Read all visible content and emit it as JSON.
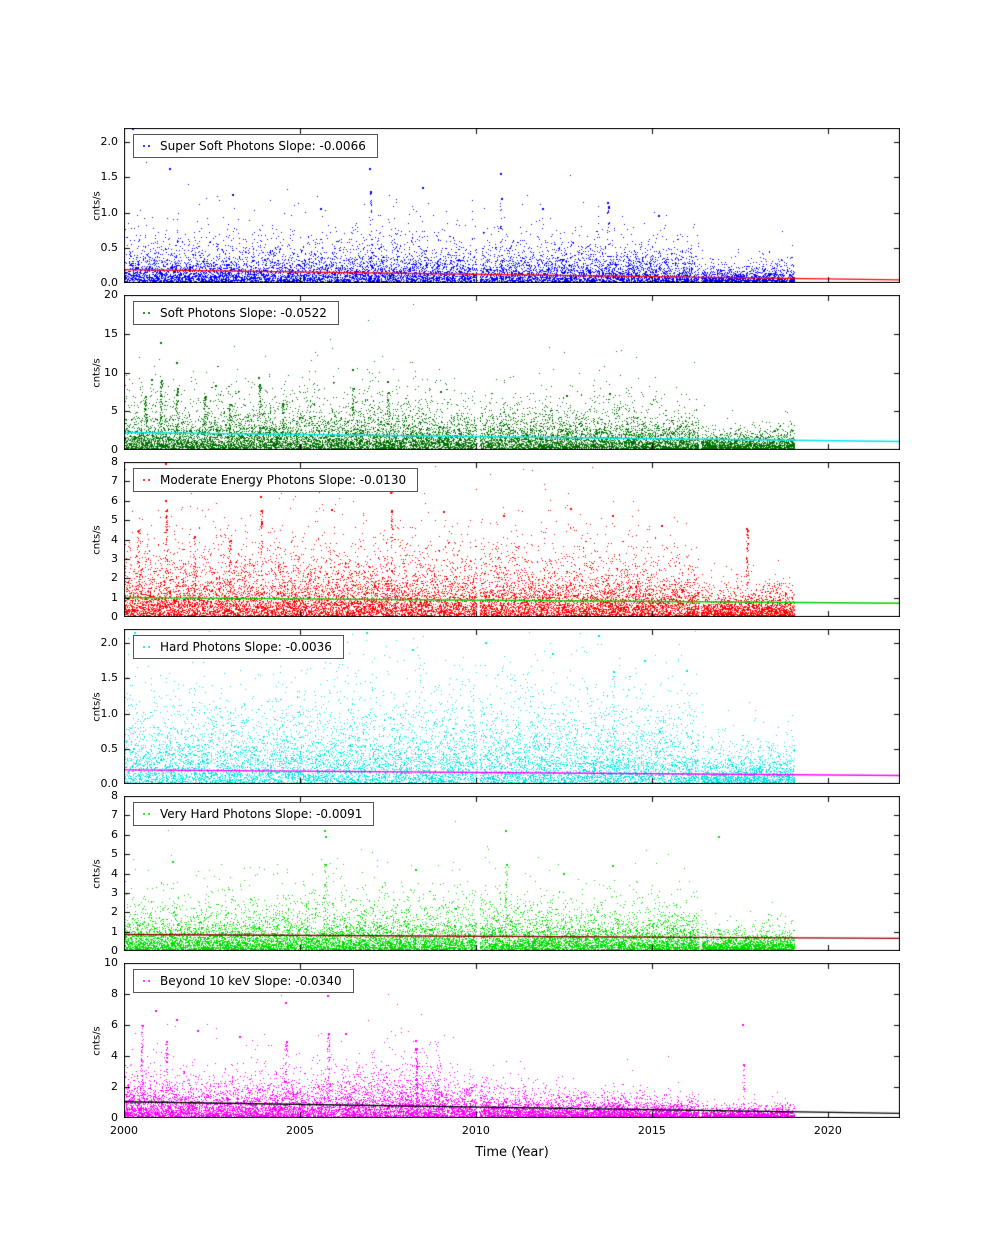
{
  "figure": {
    "background": "#ffffff"
  },
  "chart_data": {
    "type": "scatter",
    "title": "",
    "xlabel": "Time (Year)",
    "ylabel": "cnts/s",
    "xlim": [
      2000,
      2022.05
    ],
    "xticks": [
      2000,
      2005,
      2010,
      2015,
      2020
    ],
    "xtick_labels": [
      "2000",
      "2005",
      "2010",
      "2015",
      "2020"
    ],
    "data_range": [
      2000.0,
      2019.05
    ],
    "gaps": [
      [
        2010.02,
        2010.1
      ],
      [
        2016.33,
        2016.4
      ]
    ],
    "panels": [
      {
        "name": "super-soft-photons",
        "legend": "Super Soft Photons Slope: -0.0066",
        "slope": -0.0066,
        "point_color": "#0000ff",
        "trend": {
          "color": "#ff0000",
          "y_start": 0.19,
          "slope": -0.0066
        },
        "ylim": [
          0,
          2.2
        ],
        "yticks": [
          0,
          0.5,
          1.0,
          1.5,
          2.0
        ],
        "ytick_labels": [
          "0.0",
          "0.5",
          "1.0",
          "1.5",
          "2.0"
        ],
        "envelope": {
          "x": [
            2000,
            2006,
            2008,
            2010,
            2014,
            2016.2,
            2016.45,
            2019.1
          ],
          "y": [
            0.5,
            0.52,
            0.55,
            0.5,
            0.46,
            0.42,
            0.2,
            0.24
          ]
        },
        "outliers": [
          [
            2000.25,
            2.18
          ],
          [
            2001.3,
            1.62
          ],
          [
            2003.1,
            1.25
          ],
          [
            2005.6,
            1.05
          ],
          [
            2007.0,
            1.62
          ],
          [
            2008.5,
            1.35
          ],
          [
            2010.7,
            1.55
          ],
          [
            2011.9,
            1.05
          ],
          [
            2013.75,
            1.13
          ],
          [
            2015.2,
            0.95
          ]
        ],
        "streaks": [
          [
            2007.0,
            1.3,
            25
          ],
          [
            2010.7,
            1.2,
            20
          ],
          [
            2013.75,
            1.1,
            30
          ]
        ],
        "n_points": 11000,
        "seed": 101
      },
      {
        "name": "soft-photons",
        "legend": "Soft Photons Slope: -0.0522",
        "slope": -0.0522,
        "point_color": "#007200",
        "trend": {
          "color": "#00e5e5",
          "y_start": 2.25,
          "slope": -0.0522
        },
        "ylim": [
          0,
          20
        ],
        "yticks": [
          0,
          5,
          10,
          15,
          20
        ],
        "ytick_labels": [
          "0",
          "5",
          "10",
          "15",
          "20"
        ],
        "envelope": {
          "x": [
            2000,
            2004,
            2008,
            2010,
            2014,
            2016.2,
            2016.45,
            2019.1
          ],
          "y": [
            5.2,
            5.5,
            5.2,
            5.0,
            4.6,
            4.2,
            1.8,
            2.2
          ]
        },
        "outliers": [
          [
            2001.05,
            13.8
          ],
          [
            2001.5,
            11.2
          ],
          [
            2000.8,
            9.0
          ],
          [
            2002.6,
            8.2
          ],
          [
            2003.85,
            9.3
          ],
          [
            2006.5,
            10.3
          ],
          [
            2007.5,
            8.8
          ],
          [
            2009.0,
            7.5
          ],
          [
            2012.6,
            7.0
          ],
          [
            2013.8,
            7.2
          ]
        ],
        "streaks": [
          [
            2001.05,
            9,
            60
          ],
          [
            2001.5,
            8,
            50
          ],
          [
            2003.85,
            8.5,
            50
          ],
          [
            2002.3,
            7,
            40
          ],
          [
            2003.0,
            6,
            35
          ],
          [
            2004.5,
            6,
            30
          ],
          [
            2006.5,
            8,
            40
          ],
          [
            2007.5,
            7.5,
            35
          ],
          [
            2000.6,
            7,
            40
          ]
        ],
        "n_points": 14000,
        "seed": 202
      },
      {
        "name": "moderate-energy-photons",
        "legend": "Moderate Energy Photons Slope: -0.0130",
        "slope": -0.013,
        "point_color": "#ff0000",
        "trend": {
          "color": "#00cc00",
          "y_start": 1.0,
          "slope": -0.013
        },
        "ylim": [
          0,
          8
        ],
        "yticks": [
          0,
          1,
          2,
          3,
          4,
          5,
          6,
          7,
          8
        ],
        "ytick_labels": [
          "0",
          "1",
          "2",
          "3",
          "4",
          "5",
          "6",
          "7",
          "8"
        ],
        "envelope": {
          "x": [
            2000,
            2004,
            2008,
            2010,
            2014,
            2016.2,
            2016.45,
            2019.1
          ],
          "y": [
            3.0,
            3.0,
            3.1,
            2.9,
            2.7,
            2.5,
            1.2,
            1.4
          ]
        },
        "outliers": [
          [
            2001.2,
            7.9
          ],
          [
            2001.2,
            6.0
          ],
          [
            2003.9,
            6.2
          ],
          [
            2005.9,
            5.5
          ],
          [
            2007.6,
            6.4
          ],
          [
            2009.1,
            5.4
          ],
          [
            2010.8,
            5.2
          ],
          [
            2012.7,
            5.6
          ],
          [
            2013.9,
            5.2
          ],
          [
            2015.3,
            4.7
          ],
          [
            2017.7,
            4.55
          ]
        ],
        "streaks": [
          [
            2000.4,
            4.5,
            40
          ],
          [
            2001.2,
            5.5,
            50
          ],
          [
            2002.0,
            4.2,
            35
          ],
          [
            2003.0,
            4.0,
            30
          ],
          [
            2003.9,
            5.5,
            45
          ],
          [
            2007.6,
            5.5,
            40
          ],
          [
            2017.7,
            4.5,
            60
          ]
        ],
        "n_points": 14000,
        "seed": 303
      },
      {
        "name": "hard-photons",
        "legend": "Hard Photons Slope: -0.0036",
        "slope": -0.0036,
        "point_color": "#00e5e5",
        "trend": {
          "color": "#ff00ff",
          "y_start": 0.2,
          "slope": -0.0036
        },
        "ylim": [
          0,
          2.2
        ],
        "yticks": [
          0,
          0.5,
          1.0,
          1.5,
          2.0
        ],
        "ytick_labels": [
          "0.0",
          "0.5",
          "1.0",
          "1.5",
          "2.0"
        ],
        "envelope": {
          "x": [
            2000,
            2004,
            2008,
            2010,
            2014,
            2016.2,
            2016.45,
            2019.1
          ],
          "y": [
            1.05,
            1.1,
            1.15,
            1.1,
            1.05,
            1.0,
            0.45,
            0.5
          ]
        },
        "outliers": [
          [
            2000.3,
            2.15
          ],
          [
            2004.5,
            2.1
          ],
          [
            2006.9,
            2.15
          ],
          [
            2008.2,
            1.9
          ],
          [
            2010.3,
            2.0
          ],
          [
            2012.2,
            1.85
          ],
          [
            2013.5,
            2.1
          ],
          [
            2014.8,
            1.75
          ],
          [
            2016.0,
            1.6
          ]
        ],
        "streaks": [
          [
            2013.9,
            1.6,
            25
          ]
        ],
        "n_points": 11000,
        "seed": 404
      },
      {
        "name": "very-hard-photons",
        "legend": "Very Hard Photons Slope: -0.0091",
        "slope": -0.0091,
        "point_color": "#00dd00",
        "trend": {
          "color": "#8b0000",
          "y_start": 0.85,
          "slope": -0.0091
        },
        "ylim": [
          0,
          8
        ],
        "yticks": [
          0,
          1,
          2,
          3,
          4,
          5,
          6,
          7,
          8
        ],
        "ytick_labels": [
          "0",
          "1",
          "2",
          "3",
          "4",
          "5",
          "6",
          "7",
          "8"
        ],
        "envelope": {
          "x": [
            2000,
            2004,
            2008,
            2010,
            2014,
            2016.2,
            2016.45,
            2019.1
          ],
          "y": [
            1.9,
            2.0,
            2.1,
            2.0,
            1.9,
            1.8,
            0.85,
            0.95
          ]
        },
        "outliers": [
          [
            2001.4,
            4.6
          ],
          [
            2005.7,
            6.2
          ],
          [
            2005.75,
            5.9
          ],
          [
            2010.85,
            6.2
          ],
          [
            2008.3,
            4.2
          ],
          [
            2012.5,
            4.0
          ],
          [
            2013.9,
            4.4
          ],
          [
            2016.9,
            5.9
          ]
        ],
        "streaks": [
          [
            2005.7,
            4.5,
            30
          ],
          [
            2010.85,
            4.5,
            30
          ]
        ],
        "n_points": 14000,
        "seed": 505
      },
      {
        "name": "beyond-10-kev",
        "legend": "Beyond 10 keV Slope: -0.0340",
        "slope": -0.034,
        "point_color": "#ff00ff",
        "trend": {
          "color": "#000000",
          "y_start": 1.05,
          "slope": -0.034
        },
        "ylim": [
          0,
          10
        ],
        "yticks": [
          0,
          2,
          4,
          6,
          8,
          10
        ],
        "ytick_labels": [
          "0",
          "2",
          "4",
          "6",
          "8",
          "10"
        ],
        "envelope": {
          "x": [
            2000,
            2002,
            2005,
            2007.5,
            2008.5,
            2009.5,
            2011,
            2013,
            2016.2,
            2016.45,
            2019.1
          ],
          "y": [
            2.6,
            2.2,
            2.4,
            2.9,
            3.3,
            2.0,
            1.5,
            1.2,
            1.0,
            0.55,
            0.65
          ]
        },
        "outliers": [
          [
            2000.5,
            8.3
          ],
          [
            2000.9,
            6.9
          ],
          [
            2001.5,
            6.3
          ],
          [
            2002.1,
            5.6
          ],
          [
            2003.3,
            5.2
          ],
          [
            2004.6,
            7.4
          ],
          [
            2005.8,
            7.9
          ],
          [
            2006.3,
            5.4
          ],
          [
            2008.3,
            5.0
          ],
          [
            2017.6,
            6.0
          ]
        ],
        "streaks": [
          [
            2000.5,
            6,
            50
          ],
          [
            2001.2,
            5,
            40
          ],
          [
            2004.6,
            5,
            35
          ],
          [
            2005.8,
            5.5,
            35
          ],
          [
            2008.3,
            4.5,
            60
          ],
          [
            2017.6,
            3.5,
            25
          ]
        ],
        "n_points": 14000,
        "seed": 606
      }
    ]
  }
}
